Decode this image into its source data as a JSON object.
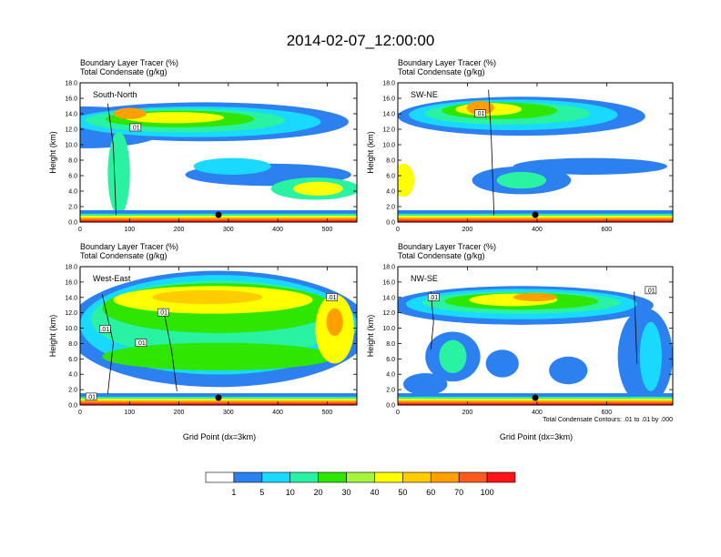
{
  "chart_data": {
    "type": "heatmap",
    "title": "2014-02-07_12:00:00",
    "panels": [
      {
        "label": "South-North",
        "subtitle1": "Boundary Layer Tracer   (%)",
        "subtitle2": "Total Condensate   (g/kg)",
        "ylabel": "Height (km)",
        "xlabel": "",
        "xlim": [
          0,
          560
        ],
        "xticks": [
          "0",
          "100",
          "200",
          "300",
          "400",
          "500"
        ],
        "xtick_values": [
          0,
          100,
          200,
          300,
          400,
          500
        ],
        "ylim": [
          0,
          18
        ],
        "yticks": [
          "0.0",
          "2.0",
          "4.0",
          "6.0",
          "8.0",
          "10.0",
          "12.0",
          "14.0",
          "16.0",
          "18.0"
        ],
        "marker_x": 280,
        "note": ""
      },
      {
        "label": "SW-NE",
        "subtitle1": "Boundary Layer Tracer   (%)",
        "subtitle2": "Total Condensate   (g/kg)",
        "ylabel": "Height (km)",
        "xlabel": "",
        "xlim": [
          0,
          790
        ],
        "xticks": [
          "0",
          "200",
          "400",
          "600"
        ],
        "xtick_values": [
          0,
          200,
          400,
          600
        ],
        "ylim": [
          0,
          18
        ],
        "yticks": [
          "0.0",
          "2.0",
          "4.0",
          "6.0",
          "8.0",
          "10.0",
          "12.0",
          "14.0",
          "16.0",
          "18.0"
        ],
        "marker_x": 395,
        "note": ""
      },
      {
        "label": "West-East",
        "subtitle1": "Boundary Layer Tracer   (%)",
        "subtitle2": "Total Condensate   (g/kg)",
        "ylabel": "Height (km)",
        "xlabel": "Grid Point (dx=3km)",
        "xlim": [
          0,
          560
        ],
        "xticks": [
          "0",
          "100",
          "200",
          "300",
          "400",
          "500"
        ],
        "xtick_values": [
          0,
          100,
          200,
          300,
          400,
          500
        ],
        "ylim": [
          0,
          18
        ],
        "yticks": [
          "0.0",
          "2.0",
          "4.0",
          "6.0",
          "8.0",
          "10.0",
          "12.0",
          "14.0",
          "16.0",
          "18.0"
        ],
        "marker_x": 280,
        "note": ""
      },
      {
        "label": "NW-SE",
        "subtitle1": "Boundary Layer Tracer   (%)",
        "subtitle2": "Total Condensate   (g/kg)",
        "ylabel": "Height (km)",
        "xlabel": "Grid Point (dx=3km)",
        "xlim": [
          0,
          790
        ],
        "xticks": [
          "0",
          "200",
          "400",
          "600"
        ],
        "xtick_values": [
          0,
          200,
          400,
          600
        ],
        "ylim": [
          0,
          18
        ],
        "yticks": [
          "0.0",
          "2.0",
          "4.0",
          "6.0",
          "8.0",
          "10.0",
          "12.0",
          "14.0",
          "16.0",
          "18.0"
        ],
        "marker_x": 395,
        "note": "Total Condensate Contours: .01 to .01 by .000"
      }
    ],
    "colorbar": {
      "colors": [
        "#ffffff",
        "#2c80f0",
        "#19d9ff",
        "#29f2a3",
        "#2ee600",
        "#a6f53c",
        "#ffff00",
        "#ffcc00",
        "#ff9f00",
        "#ff5a1e",
        "#ff1418"
      ],
      "labels": [
        "1",
        "5",
        "10",
        "20",
        "30",
        "40",
        "50",
        "60",
        "70",
        "100"
      ]
    },
    "contour_labels": [
      ".01",
      ".01",
      ".01",
      ".01",
      ".01",
      ".01",
      ".01",
      ".01",
      ".01",
      ".01"
    ]
  }
}
